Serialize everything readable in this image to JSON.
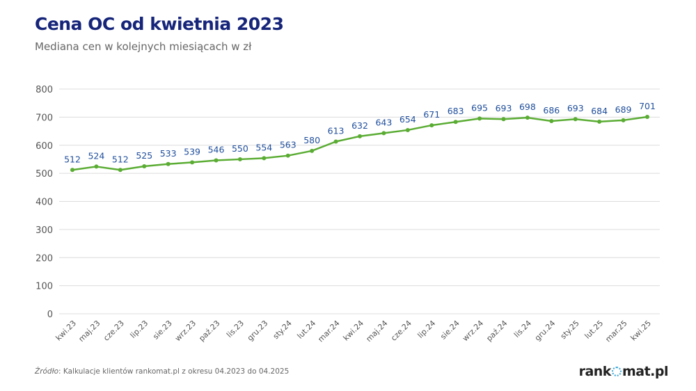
{
  "header": {
    "title": "Cena OC od kwietnia 2023",
    "subtitle": "Mediana cen w kolejnych miesiącach w zł"
  },
  "chart_data": {
    "type": "line",
    "title": "Cena OC od kwietnia 2023",
    "subtitle": "Mediana cen w kolejnych miesiącach w zł",
    "categories": [
      "kwi.23",
      "maj.23",
      "cze.23",
      "lip.23",
      "sie.23",
      "wrz.23",
      "paź.23",
      "lis.23",
      "gru.23",
      "sty.24",
      "lut.24",
      "mar.24",
      "kwi.24",
      "maj.24",
      "cze.24",
      "lip.24",
      "sie.24",
      "wrz.24",
      "paź.24",
      "lis.24",
      "gru.24",
      "sty.25",
      "lut.25",
      "mar.25",
      "kwi.25"
    ],
    "values": [
      512,
      524,
      512,
      525,
      533,
      539,
      546,
      550,
      554,
      563,
      580,
      613,
      632,
      643,
      654,
      671,
      683,
      695,
      693,
      698,
      686,
      693,
      684,
      689,
      701
    ],
    "ylim": [
      0,
      800
    ],
    "yticks": [
      0,
      100,
      200,
      300,
      400,
      500,
      600,
      700,
      800
    ],
    "grid": true,
    "data_labels": true,
    "line_color": "#5aac33",
    "label_color": "#1f4e9c"
  },
  "footer": {
    "source_label": "Źródło",
    "source_text": ": Kalkulacje klientów rankomat.pl z okresu 04.2023 do 04.2025",
    "logo_left": "rank",
    "logo_right": "mat.pl"
  }
}
